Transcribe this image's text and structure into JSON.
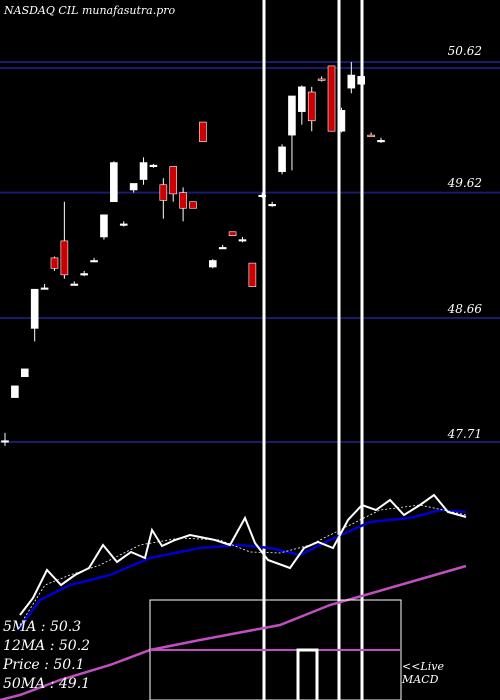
{
  "title": "NASDAQ CIL munafasutra.pro",
  "chart_data": {
    "type": "candlestick",
    "price_levels": [
      "50.62",
      "49.62",
      "48.66",
      "47.71"
    ],
    "candles": [
      {
        "o": 47.72,
        "c": 47.72,
        "h": 47.78,
        "l": 47.68,
        "color": "white"
      },
      {
        "o": 48.05,
        "c": 48.14,
        "h": 48.14,
        "l": 48.05,
        "color": "white"
      },
      {
        "o": 48.21,
        "c": 48.27,
        "h": 48.27,
        "l": 48.21,
        "color": "white"
      },
      {
        "o": 48.58,
        "c": 48.88,
        "h": 48.88,
        "l": 48.48,
        "color": "white"
      },
      {
        "o": 48.88,
        "c": 48.89,
        "h": 48.92,
        "l": 48.88,
        "color": "white"
      },
      {
        "o": 49.12,
        "c": 49.04,
        "h": 49.13,
        "l": 49.02,
        "color": "red"
      },
      {
        "o": 49.25,
        "c": 48.99,
        "h": 49.55,
        "l": 48.96,
        "color": "red"
      },
      {
        "o": 48.92,
        "c": 48.92,
        "h": 48.94,
        "l": 48.91,
        "color": "white"
      },
      {
        "o": 49.0,
        "c": 49.0,
        "h": 49.02,
        "l": 48.98,
        "color": "white"
      },
      {
        "o": 49.1,
        "c": 49.1,
        "h": 49.12,
        "l": 49.09,
        "color": "white"
      },
      {
        "o": 49.28,
        "c": 49.45,
        "h": 49.45,
        "l": 49.26,
        "color": "white"
      },
      {
        "o": 49.55,
        "c": 49.85,
        "h": 49.86,
        "l": 49.55,
        "color": "white"
      },
      {
        "o": 49.38,
        "c": 49.38,
        "h": 49.4,
        "l": 49.36,
        "color": "white"
      },
      {
        "o": 49.64,
        "c": 49.69,
        "h": 49.69,
        "l": 49.62,
        "color": "white"
      },
      {
        "o": 49.72,
        "c": 49.85,
        "h": 49.89,
        "l": 49.68,
        "color": "white"
      },
      {
        "o": 49.83,
        "c": 49.83,
        "h": 49.84,
        "l": 49.81,
        "color": "white"
      },
      {
        "o": 49.68,
        "c": 49.56,
        "h": 49.73,
        "l": 49.42,
        "color": "red"
      },
      {
        "o": 49.82,
        "c": 49.61,
        "h": 49.82,
        "l": 49.55,
        "color": "red"
      },
      {
        "o": 49.62,
        "c": 49.5,
        "h": 49.66,
        "l": 49.4,
        "color": "red"
      },
      {
        "o": 49.55,
        "c": 49.5,
        "h": 49.55,
        "l": 49.5,
        "color": "red"
      },
      {
        "o": 50.16,
        "c": 50.01,
        "h": 50.16,
        "l": 50.01,
        "color": "red"
      },
      {
        "o": 49.05,
        "c": 49.1,
        "h": 49.11,
        "l": 49.04,
        "color": "white"
      },
      {
        "o": 49.2,
        "c": 49.2,
        "h": 49.22,
        "l": 49.19,
        "color": "white"
      },
      {
        "o": 49.32,
        "c": 49.29,
        "h": 49.32,
        "l": 49.29,
        "color": "red"
      },
      {
        "o": 49.26,
        "c": 49.26,
        "h": 49.28,
        "l": 49.24,
        "color": "white"
      },
      {
        "o": 49.08,
        "c": 48.9,
        "h": 49.08,
        "l": 48.9,
        "color": "red"
      },
      {
        "o": 49.6,
        "c": 49.6,
        "h": 49.62,
        "l": 49.58,
        "color": "white"
      },
      {
        "o": 49.53,
        "c": 49.53,
        "h": 49.55,
        "l": 49.51,
        "color": "white"
      },
      {
        "o": 49.78,
        "c": 49.97,
        "h": 49.99,
        "l": 49.76,
        "color": "white"
      },
      {
        "o": 50.06,
        "c": 50.36,
        "h": 50.36,
        "l": 49.79,
        "color": "white"
      },
      {
        "o": 50.24,
        "c": 50.43,
        "h": 50.44,
        "l": 50.14,
        "color": "white"
      },
      {
        "o": 50.39,
        "c": 50.17,
        "h": 50.43,
        "l": 50.09,
        "color": "red"
      },
      {
        "o": 50.49,
        "c": 50.49,
        "h": 50.51,
        "l": 50.47,
        "color": "red"
      },
      {
        "o": 50.59,
        "c": 50.09,
        "h": 50.59,
        "l": 50.09,
        "color": "red"
      },
      {
        "o": 50.09,
        "c": 50.25,
        "h": 50.27,
        "l": 50.08,
        "color": "white"
      },
      {
        "o": 50.42,
        "c": 50.52,
        "h": 50.62,
        "l": 50.38,
        "color": "white"
      },
      {
        "o": 50.45,
        "c": 50.51,
        "h": 50.52,
        "l": 50.44,
        "color": "white"
      },
      {
        "o": 50.06,
        "c": 50.06,
        "h": 50.08,
        "l": 50.05,
        "color": "red"
      },
      {
        "o": 50.02,
        "c": 50.02,
        "h": 50.04,
        "l": 50.0,
        "color": "white"
      }
    ],
    "stats": {
      "ma5": "5MA : 50.3",
      "ma12": "12MA : 50.2",
      "price": "Price   : 50.1",
      "ma50": "50MA : 49.1"
    },
    "macd_label": [
      "<<Live",
      "MACD"
    ],
    "colors": {
      "white_candle": "#ffffff",
      "red_candle": "#cc0000",
      "level_line": "#1a1a6e",
      "ma_blue": "#0000cc",
      "ma_pink": "#c050c0"
    }
  }
}
